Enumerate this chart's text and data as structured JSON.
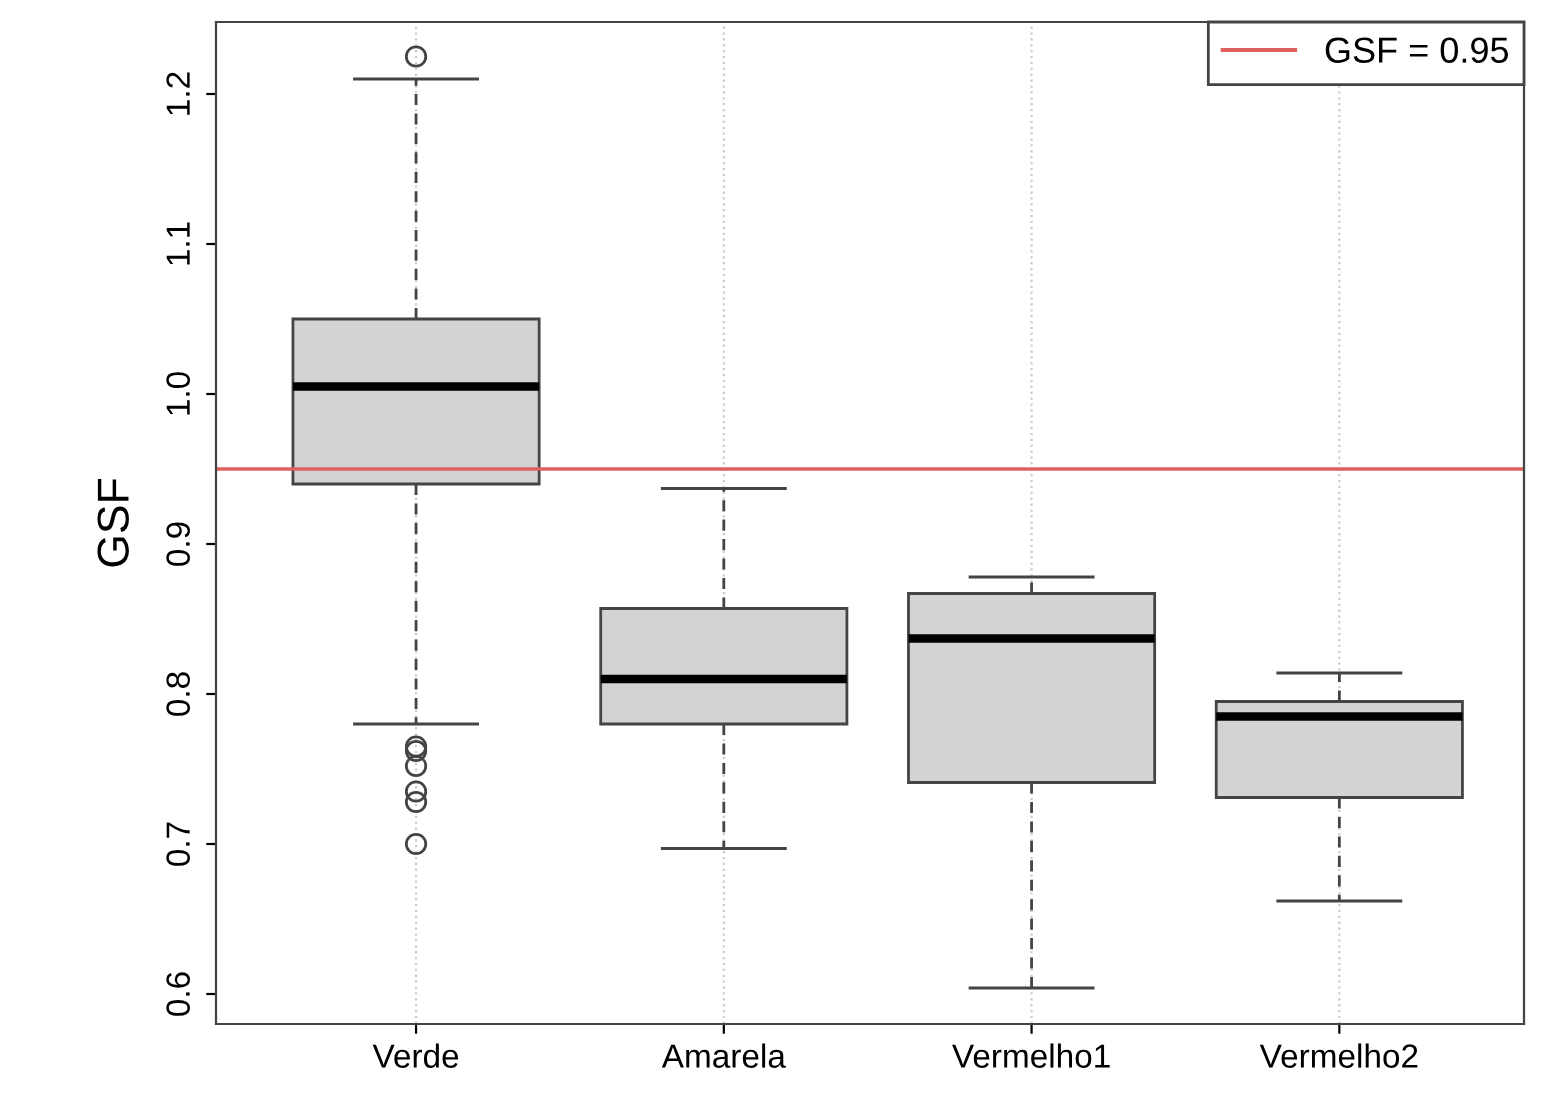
{
  "chart_data": {
    "type": "box",
    "ylabel": "GSF",
    "categories": [
      "Verde",
      "Amarela",
      "Vermelho1",
      "Vermelho2"
    ],
    "boxes": [
      {
        "low": 0.78,
        "q1": 0.94,
        "median": 1.005,
        "q3": 1.05,
        "high": 1.21,
        "outliers": [
          1.225,
          0.765,
          0.762,
          0.752,
          0.735,
          0.728,
          0.7
        ]
      },
      {
        "low": 0.697,
        "q1": 0.78,
        "median": 0.81,
        "q3": 0.857,
        "high": 0.937
      },
      {
        "low": 0.604,
        "q1": 0.741,
        "median": 0.837,
        "q3": 0.867,
        "high": 0.878
      },
      {
        "low": 0.662,
        "q1": 0.731,
        "median": 0.785,
        "q3": 0.795,
        "high": 0.814
      }
    ],
    "color": "#d3d3d3",
    "ylim": [
      0.58,
      1.248
    ],
    "yticks": [
      0.6,
      0.7,
      0.8,
      0.9,
      {
        "value": 1.0,
        "label": "1.0"
      },
      1.1,
      1.2
    ],
    "ref_lines": [
      {
        "axis": "y",
        "value": 0.95,
        "label": "GSF = 0.95",
        "color": "#e06060",
        "line_style": "solid"
      }
    ],
    "grid": "x",
    "legend": "upper right"
  }
}
